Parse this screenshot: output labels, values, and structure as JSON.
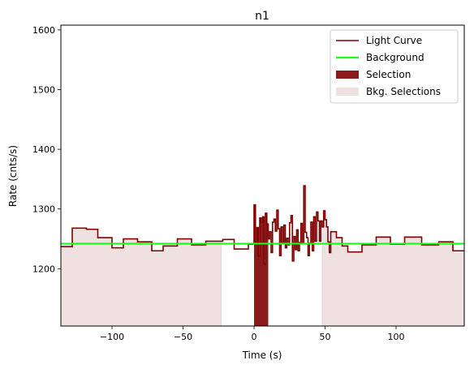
{
  "chart_data": {
    "type": "line",
    "title": "n1",
    "xlabel": "Time (s)",
    "ylabel": "Rate (cnts/s)",
    "xlim": [
      -136,
      148
    ],
    "ylim": [
      1104,
      1608
    ],
    "xticks": [
      -100,
      -50,
      0,
      50,
      100
    ],
    "yticks": [
      1200,
      1300,
      1400,
      1500,
      1600
    ],
    "grid": false,
    "legend_position": "top-right",
    "colors": {
      "light_curve": "#7f0000",
      "background": "#1aff1a",
      "selection": "#8b1a1a",
      "bkg_selection": "#f0e1e1"
    },
    "legend": [
      {
        "label": "Light Curve",
        "kind": "line",
        "color": "#7f0000"
      },
      {
        "label": "Background",
        "kind": "line",
        "color": "#1aff1a"
      },
      {
        "label": "Selection",
        "kind": "patch",
        "color": "#8b1a1a"
      },
      {
        "label": "Bkg. Selections",
        "kind": "patch",
        "color": "#f0e1e1"
      }
    ],
    "series": [
      {
        "name": "Light Curve",
        "kind": "step",
        "edges": [
          -136,
          -128,
          -118,
          -110,
          -100,
          -92,
          -82,
          -72,
          -64,
          -54,
          -44,
          -34,
          -22,
          -14,
          -4,
          -1,
          0,
          1,
          2,
          3,
          4,
          5,
          6,
          7,
          8,
          9,
          10,
          11,
          12,
          13,
          14,
          15,
          16,
          17,
          18,
          19,
          20,
          21,
          22,
          23,
          24,
          25,
          26,
          27,
          28,
          29,
          30,
          31,
          32,
          33,
          34,
          35,
          36,
          37,
          38,
          39,
          40,
          41,
          42,
          43,
          44,
          45,
          46,
          47,
          48,
          49,
          50,
          51,
          52,
          53,
          54,
          58,
          62,
          66,
          76,
          86,
          96,
          106,
          118,
          130,
          140,
          148
        ],
        "values": [
          1237,
          1268,
          1266,
          1252,
          1235,
          1250,
          1245,
          1230,
          1238,
          1250,
          1240,
          1246,
          1249,
          1233,
          1241,
          1242,
          1307,
          1243,
          1269,
          1221,
          1285,
          1278,
          1287,
          1208,
          1293,
          1275,
          1250,
          1262,
          1227,
          1278,
          1283,
          1263,
          1298,
          1267,
          1222,
          1270,
          1243,
          1273,
          1235,
          1251,
          1240,
          1277,
          1289,
          1213,
          1254,
          1232,
          1265,
          1230,
          1244,
          1276,
          1243,
          1339,
          1261,
          1252,
          1222,
          1243,
          1278,
          1230,
          1287,
          1246,
          1295,
          1280,
          1246,
          1280,
          1270,
          1297,
          1282,
          1270,
          1245,
          1227,
          1262,
          1252,
          1238,
          1228,
          1240,
          1253,
          1241,
          1253,
          1240,
          1245,
          1230
        ]
      },
      {
        "name": "Background",
        "kind": "line",
        "x": [
          -136,
          148
        ],
        "y": [
          1242,
          1242
        ]
      }
    ],
    "selection": {
      "x": [
        0,
        10
      ]
    },
    "bkg_selections": [
      {
        "x": [
          -136,
          -23
        ]
      },
      {
        "x": [
          48,
          148
        ]
      }
    ]
  }
}
